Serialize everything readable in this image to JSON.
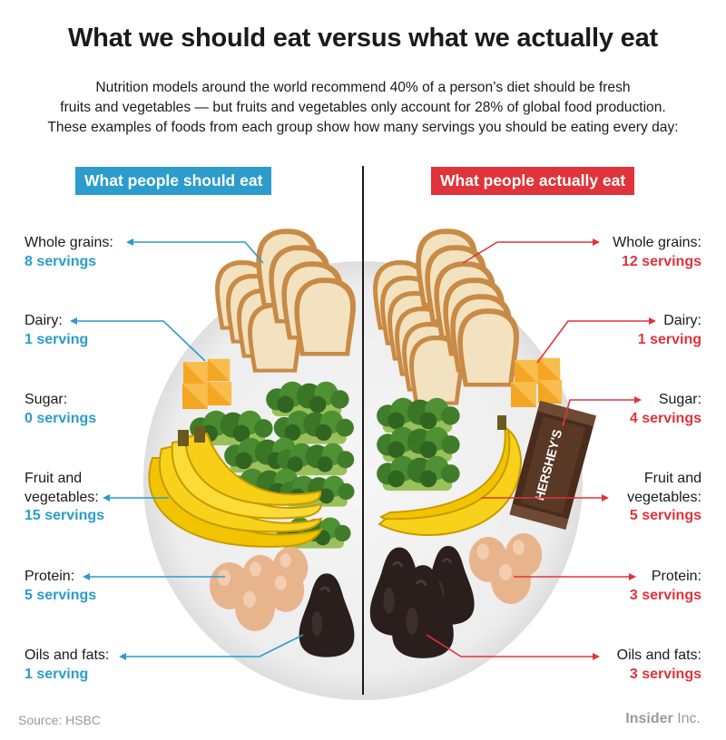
{
  "title": "What we should eat versus what we actually eat",
  "subtitle_lines": [
    "Nutrition models around the world recommend 40% of a person’s diet should be fresh",
    "fruits and vegetables — but fruits and vegetables only account for 28% of global food production.",
    "These examples of foods from each group show how many servings you should be eating every day:"
  ],
  "colors": {
    "should": "#2b9ccb",
    "actual": "#e0333a",
    "plate": "#ececec",
    "divider": "#1a1a1a"
  },
  "left": {
    "header": "What people should eat",
    "groups": [
      {
        "name_lines": [
          "Whole grains:"
        ],
        "servings": "8 servings",
        "value": 8
      },
      {
        "name_lines": [
          "Dairy:"
        ],
        "servings": "1 serving",
        "value": 1
      },
      {
        "name_lines": [
          "Sugar:"
        ],
        "servings": "0 servings",
        "value": 0
      },
      {
        "name_lines": [
          "Fruit and",
          "vegetables:"
        ],
        "servings": "15 servings",
        "value": 15
      },
      {
        "name_lines": [
          "Protein:"
        ],
        "servings": "5 servings",
        "value": 5
      },
      {
        "name_lines": [
          "Oils and fats:"
        ],
        "servings": "1 serving",
        "value": 1
      }
    ]
  },
  "right": {
    "header": "What people actually eat",
    "groups": [
      {
        "name_lines": [
          "Whole grains:"
        ],
        "servings": "12 servings",
        "value": 12
      },
      {
        "name_lines": [
          "Dairy:"
        ],
        "servings": "1 serving",
        "value": 1
      },
      {
        "name_lines": [
          "Sugar:"
        ],
        "servings": "4 servings",
        "value": 4
      },
      {
        "name_lines": [
          "Fruit and",
          "vegetables:"
        ],
        "servings": "5 servings",
        "value": 5
      },
      {
        "name_lines": [
          "Protein:"
        ],
        "servings": "3 servings",
        "value": 3
      },
      {
        "name_lines": [
          "Oils and fats:"
        ],
        "servings": "3 servings",
        "value": 3
      }
    ]
  },
  "candy_text": "HERSHEY'S",
  "source": "Source: HSBC",
  "brand": {
    "main": "Insider",
    "suffix": " Inc."
  },
  "icons": [
    "bread-slice-icon",
    "cheese-cube-icon",
    "broccoli-icon",
    "banana-icon",
    "egg-icon",
    "avocado-icon",
    "chocolate-bar-icon"
  ]
}
